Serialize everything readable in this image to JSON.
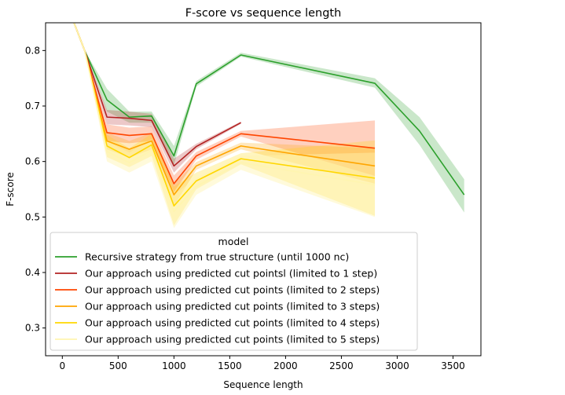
{
  "chart_data": {
    "type": "line",
    "title": "F-score vs sequence length",
    "xlabel": "Sequence length",
    "ylabel": "F-score",
    "xlim": [
      -150,
      3750
    ],
    "ylim": [
      0.25,
      0.85
    ],
    "xticks": [
      0,
      500,
      1000,
      1500,
      2000,
      2500,
      3000,
      3500
    ],
    "yticks": [
      0.3,
      0.4,
      0.5,
      0.6,
      0.7,
      0.8
    ],
    "grid": false,
    "legend": {
      "title": "model",
      "placement": "lower-left"
    },
    "series": [
      {
        "name": "Recursive strategy from true structure (until 1000 nc)",
        "color": "#2ca02c",
        "x": [
          0,
          200,
          400,
          600,
          800,
          1000,
          1200,
          1600,
          2800,
          3200,
          3600
        ],
        "y": [
          0.905,
          0.8,
          0.711,
          0.68,
          0.682,
          0.61,
          0.74,
          0.792,
          0.741,
          0.655,
          0.54
        ],
        "lower": [
          0.905,
          0.8,
          0.69,
          0.67,
          0.67,
          0.594,
          0.735,
          0.789,
          0.733,
          0.63,
          0.508
        ],
        "upper": [
          0.905,
          0.8,
          0.731,
          0.69,
          0.69,
          0.628,
          0.745,
          0.796,
          0.75,
          0.68,
          0.568
        ]
      },
      {
        "name": "Our approach using predicted cut pointsl (limited to 1 step)",
        "color": "#b22222",
        "x": [
          0,
          200,
          400,
          600,
          800,
          1000,
          1200,
          1600
        ],
        "y": [
          0.905,
          0.8,
          0.68,
          0.678,
          0.674,
          0.592,
          0.627,
          0.67
        ],
        "lower": [
          0.905,
          0.8,
          0.667,
          0.665,
          0.662,
          0.58,
          0.622,
          0.668
        ],
        "upper": [
          0.905,
          0.8,
          0.693,
          0.69,
          0.686,
          0.605,
          0.632,
          0.672
        ]
      },
      {
        "name": "Our approach using predicted cut points (limited to 2 steps)",
        "color": "#ff4500",
        "x": [
          0,
          200,
          400,
          600,
          800,
          1000,
          1200,
          1600,
          2800
        ],
        "y": [
          0.905,
          0.8,
          0.652,
          0.647,
          0.65,
          0.56,
          0.61,
          0.65,
          0.624
        ],
        "lower": [
          0.905,
          0.8,
          0.637,
          0.633,
          0.637,
          0.545,
          0.603,
          0.645,
          0.574
        ],
        "upper": [
          0.905,
          0.8,
          0.667,
          0.661,
          0.663,
          0.575,
          0.617,
          0.655,
          0.674
        ]
      },
      {
        "name": "Our approach using predicted cut points (limited to 3 steps)",
        "color": "#ffa500",
        "x": [
          0,
          200,
          400,
          600,
          800,
          1000,
          1200,
          1600,
          2800
        ],
        "y": [
          0.905,
          0.8,
          0.637,
          0.622,
          0.637,
          0.54,
          0.592,
          0.628,
          0.592
        ],
        "lower": [
          0.905,
          0.8,
          0.622,
          0.607,
          0.622,
          0.52,
          0.585,
          0.622,
          0.56
        ],
        "upper": [
          0.905,
          0.8,
          0.652,
          0.637,
          0.652,
          0.56,
          0.599,
          0.634,
          0.624
        ]
      },
      {
        "name": "Our approach using predicted cut points (limited to 4 steps)",
        "color": "#ffd700",
        "x": [
          0,
          200,
          400,
          600,
          800,
          1000,
          1200,
          1600,
          2800
        ],
        "y": [
          0.905,
          0.8,
          0.628,
          0.607,
          0.63,
          0.52,
          0.565,
          0.605,
          0.57
        ],
        "lower": [
          0.905,
          0.8,
          0.608,
          0.59,
          0.61,
          0.485,
          0.55,
          0.595,
          0.502
        ],
        "upper": [
          0.905,
          0.8,
          0.648,
          0.624,
          0.65,
          0.555,
          0.58,
          0.615,
          0.638
        ]
      },
      {
        "name": "Our approach using predicted cut points (limited to 5 steps)",
        "color": "#fff5b0",
        "x": [
          0,
          200,
          400,
          600,
          800,
          1000,
          1200,
          1600,
          2800
        ],
        "y": [
          0.905,
          0.8,
          0.618,
          0.598,
          0.62,
          0.51,
          0.555,
          0.598,
          0.558
        ],
        "lower": [
          0.905,
          0.8,
          0.6,
          0.58,
          0.6,
          0.48,
          0.54,
          0.585,
          0.5
        ],
        "upper": [
          0.905,
          0.8,
          0.636,
          0.616,
          0.64,
          0.54,
          0.57,
          0.61,
          0.616
        ]
      }
    ]
  }
}
